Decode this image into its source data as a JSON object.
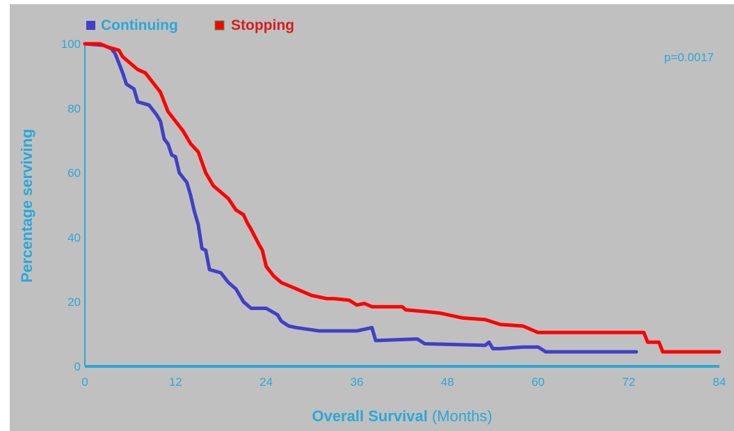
{
  "chart_data": {
    "type": "line",
    "step": true,
    "legend": {
      "placement": "top-left",
      "entries": [
        {
          "name": "Continuing",
          "color": "#4040c8",
          "text_color": "#29a8d8"
        },
        {
          "name": "Stopping",
          "color": "#ff0000",
          "text_color": "#d81c1c"
        }
      ]
    },
    "annotation": "p=0.0017",
    "xlabel_bold": "Overall Survival",
    "xlabel_rest": "(Months)",
    "ylabel": "Percentage serviving",
    "xlim": [
      0,
      84
    ],
    "ylim": [
      0,
      100
    ],
    "xticks": [
      0,
      12,
      24,
      36,
      48,
      60,
      72,
      84
    ],
    "yticks": [
      0,
      20,
      40,
      60,
      80,
      100
    ],
    "grid": false,
    "axis_color": "#29a8d8",
    "series": [
      {
        "name": "Continuing",
        "color": "#4040c8",
        "points": [
          [
            0,
            100
          ],
          [
            2.5,
            99.5
          ],
          [
            3.5,
            98.5
          ],
          [
            4,
            97
          ],
          [
            4.5,
            94
          ],
          [
            5,
            91
          ],
          [
            5.5,
            87.5
          ],
          [
            6.5,
            86
          ],
          [
            7,
            82
          ],
          [
            8.5,
            81
          ],
          [
            9.5,
            78
          ],
          [
            10,
            76
          ],
          [
            10.5,
            70.5
          ],
          [
            11,
            69
          ],
          [
            11.5,
            65.5
          ],
          [
            12,
            65
          ],
          [
            12.5,
            60
          ],
          [
            13.5,
            57
          ],
          [
            14,
            53
          ],
          [
            14.5,
            48
          ],
          [
            15,
            44
          ],
          [
            15.5,
            36.5
          ],
          [
            16,
            36
          ],
          [
            16.5,
            30
          ],
          [
            18,
            29
          ],
          [
            19,
            26
          ],
          [
            20,
            24
          ],
          [
            21,
            20
          ],
          [
            22,
            18
          ],
          [
            24,
            18
          ],
          [
            25.5,
            16
          ],
          [
            26,
            14
          ],
          [
            27,
            12.5
          ],
          [
            28,
            12
          ],
          [
            31,
            11
          ],
          [
            35,
            11
          ],
          [
            36,
            11
          ],
          [
            38,
            12
          ],
          [
            38.5,
            8
          ],
          [
            44,
            8.5
          ],
          [
            45,
            7
          ],
          [
            53,
            6.5
          ],
          [
            53.5,
            7.5
          ],
          [
            54,
            5.5
          ],
          [
            55,
            5.5
          ],
          [
            58,
            6
          ],
          [
            60,
            6
          ],
          [
            61,
            4.5
          ],
          [
            73,
            4.5
          ]
        ]
      },
      {
        "name": "Stopping",
        "color": "#ff0000",
        "points": [
          [
            0,
            100
          ],
          [
            2,
            100
          ],
          [
            3,
            99
          ],
          [
            4.5,
            98
          ],
          [
            5,
            96
          ],
          [
            6,
            94
          ],
          [
            7,
            92
          ],
          [
            8,
            91
          ],
          [
            9,
            88
          ],
          [
            10,
            85
          ],
          [
            10.5,
            82
          ],
          [
            11,
            79
          ],
          [
            12,
            76
          ],
          [
            13,
            73
          ],
          [
            13.5,
            71
          ],
          [
            14,
            69
          ],
          [
            15,
            66.5
          ],
          [
            16,
            60
          ],
          [
            17,
            56
          ],
          [
            18,
            54
          ],
          [
            19,
            52
          ],
          [
            20,
            48.5
          ],
          [
            21,
            47
          ],
          [
            21.5,
            44.5
          ],
          [
            22,
            42.5
          ],
          [
            23,
            38
          ],
          [
            23.5,
            36
          ],
          [
            24,
            31
          ],
          [
            25,
            28
          ],
          [
            26,
            26
          ],
          [
            27,
            25
          ],
          [
            28,
            24
          ],
          [
            29,
            23
          ],
          [
            30,
            22
          ],
          [
            31,
            21.5
          ],
          [
            32,
            21
          ],
          [
            33,
            21
          ],
          [
            35,
            20.5
          ],
          [
            36,
            19
          ],
          [
            37,
            19.5
          ],
          [
            38,
            18.5
          ],
          [
            42,
            18.5
          ],
          [
            42.5,
            17.5
          ],
          [
            45,
            17
          ],
          [
            47,
            16.5
          ],
          [
            50,
            15
          ],
          [
            53,
            14.5
          ],
          [
            55,
            13
          ],
          [
            58,
            12.5
          ],
          [
            59.5,
            11
          ],
          [
            60,
            10.5
          ],
          [
            74,
            10.5
          ],
          [
            74.5,
            7.5
          ],
          [
            76,
            7.5
          ],
          [
            76.5,
            4.5
          ],
          [
            84,
            4.5
          ]
        ]
      }
    ]
  }
}
